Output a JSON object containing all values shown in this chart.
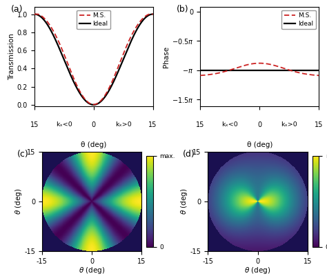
{
  "title_a": "(a)",
  "title_b": "(b)",
  "title_c": "(c)",
  "title_d": "(d)",
  "legend_ms": "M.S.",
  "legend_ideal": "Ideal",
  "xlabel": "θ (deg)",
  "ylabel_a": "Transmission",
  "ylabel_b": "Phase",
  "kx_neg": "kₓ<0",
  "kx_pos": "kₓ>0",
  "colorbar_max": "max.",
  "colorbar_min": "0",
  "line_color_ideal": "#000000",
  "line_color_ms": "#cc2222",
  "background_color": "#ffffff",
  "panel_bg_dark": "#1a1050"
}
